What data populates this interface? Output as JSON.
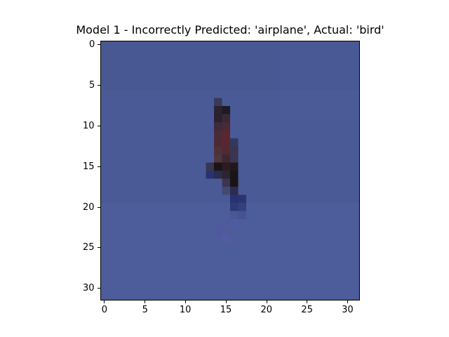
{
  "title": "Model 1 - Incorrectly Predicted: 'airplane', Actual: 'bird'",
  "image": {
    "description": "32x32 low-resolution photo: blue sky background with a thin dark elongated bird silhouette near the center",
    "grid_size": 32
  },
  "axes": {
    "x_ticks": [
      "0",
      "5",
      "10",
      "15",
      "20",
      "25",
      "30"
    ],
    "y_ticks": [
      "0",
      "5",
      "10",
      "15",
      "20",
      "25",
      "30"
    ]
  },
  "colors": {
    "sky": "#4a5a96",
    "sky_light": "#5060a0",
    "bird_dark": "#1a1418",
    "bird_red": "#5a2630",
    "bird_blue": "#26336e"
  }
}
